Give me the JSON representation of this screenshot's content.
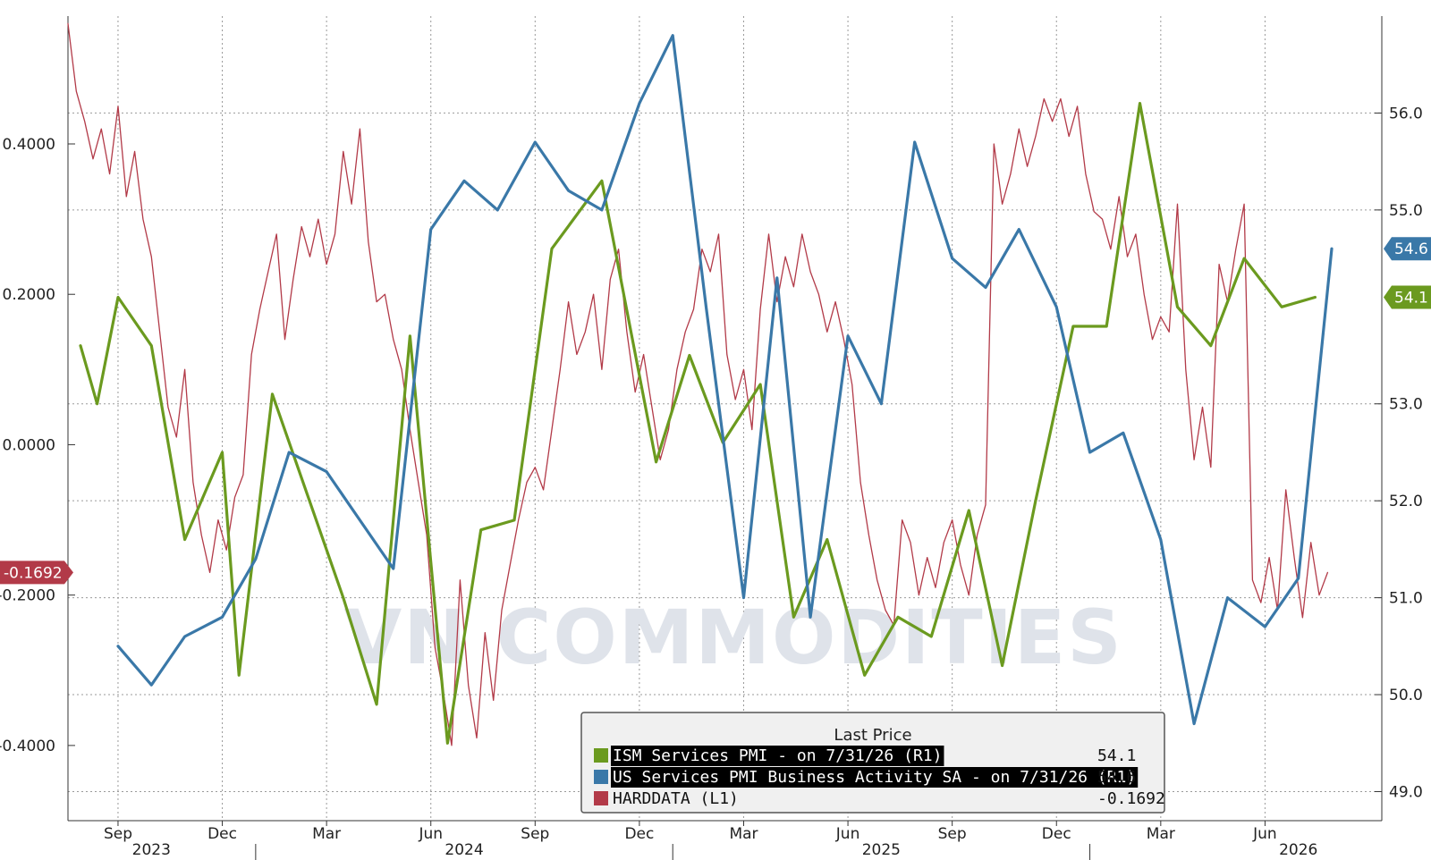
{
  "colors": {
    "ism": "#6b9a1f",
    "us": "#3a78a8",
    "hard": "#b23a48",
    "grid": "#9a9a9a",
    "legend_bg": "#f0f0f0"
  },
  "chart_data": {
    "type": "line",
    "title": "",
    "watermark": "VN COMMODITIES",
    "grid": true,
    "legend_position": "bottom-center",
    "x_axis": {
      "range": [
        2023.55,
        2026.7
      ],
      "months": [
        {
          "label": "Sep",
          "x": 2023.67
        },
        {
          "label": "Dec",
          "x": 2023.92
        },
        {
          "label": "Mar",
          "x": 2024.17
        },
        {
          "label": "Jun",
          "x": 2024.42
        },
        {
          "label": "Sep",
          "x": 2024.67
        },
        {
          "label": "Dec",
          "x": 2024.92
        },
        {
          "label": "Mar",
          "x": 2025.17
        },
        {
          "label": "Jun",
          "x": 2025.42
        },
        {
          "label": "Sep",
          "x": 2025.67
        },
        {
          "label": "Dec",
          "x": 2025.92
        },
        {
          "label": "Mar",
          "x": 2026.17
        },
        {
          "label": "Jun",
          "x": 2026.42
        }
      ],
      "years": [
        {
          "label": "2023",
          "x": 2023.75
        },
        {
          "label": "2024",
          "x": 2024.5
        },
        {
          "label": "2025",
          "x": 2025.5
        },
        {
          "label": "2026",
          "x": 2026.5
        }
      ],
      "year_boundaries": [
        2024.0,
        2025.0,
        2026.0
      ]
    },
    "left_axis": {
      "range": [
        -0.5,
        0.57
      ],
      "ticks": [
        {
          "v": 0.4,
          "label": "0.4000"
        },
        {
          "v": 0.2,
          "label": "0.2000"
        },
        {
          "v": 0.0,
          "label": "0.0000"
        },
        {
          "v": -0.2,
          "label": "-0.2000"
        },
        {
          "v": -0.4,
          "label": "-0.4000"
        }
      ]
    },
    "right_axis": {
      "range": [
        48.7,
        57.0
      ],
      "ticks": [
        {
          "v": 56.0,
          "label": "56.0"
        },
        {
          "v": 55.0,
          "label": "55.0"
        },
        {
          "v": 53.0,
          "label": "53.0"
        },
        {
          "v": 52.0,
          "label": "52.0"
        },
        {
          "v": 51.0,
          "label": "51.0"
        },
        {
          "v": 50.0,
          "label": "50.0"
        },
        {
          "v": 49.0,
          "label": "49.0"
        }
      ]
    },
    "series": [
      {
        "name": "ISM Services PMI -  on 7/31/26  (R1)",
        "axis": "right",
        "color_key": "ism",
        "last_value": "54.1",
        "badge": "54.1",
        "points": [
          [
            2023.58,
            53.6
          ],
          [
            2023.62,
            53.0
          ],
          [
            2023.67,
            54.1
          ],
          [
            2023.75,
            53.6
          ],
          [
            2023.83,
            51.6
          ],
          [
            2023.92,
            52.5
          ],
          [
            2023.96,
            50.2
          ],
          [
            2024.04,
            53.1
          ],
          [
            2024.21,
            51.0
          ],
          [
            2024.29,
            49.9
          ],
          [
            2024.37,
            53.7
          ],
          [
            2024.46,
            49.5
          ],
          [
            2024.54,
            51.7
          ],
          [
            2024.62,
            51.8
          ],
          [
            2024.71,
            54.6
          ],
          [
            2024.83,
            55.3
          ],
          [
            2024.96,
            52.4
          ],
          [
            2025.04,
            53.5
          ],
          [
            2025.12,
            52.6
          ],
          [
            2025.21,
            53.2
          ],
          [
            2025.29,
            50.8
          ],
          [
            2025.37,
            51.6
          ],
          [
            2025.46,
            50.2
          ],
          [
            2025.54,
            50.8
          ],
          [
            2025.62,
            50.6
          ],
          [
            2025.71,
            51.9
          ],
          [
            2025.79,
            50.3
          ],
          [
            2025.87,
            52.0
          ],
          [
            2025.96,
            53.8
          ],
          [
            2026.04,
            53.8
          ],
          [
            2026.12,
            56.1
          ],
          [
            2026.21,
            54.0
          ],
          [
            2026.29,
            53.6
          ],
          [
            2026.37,
            54.5
          ],
          [
            2026.46,
            54.0
          ],
          [
            2026.54,
            54.1
          ]
        ]
      },
      {
        "name": "US Services PMI Business Activity SA -  on 7/31/26  (R1)",
        "axis": "right",
        "color_key": "us",
        "last_value": "54.6",
        "badge": "54.6",
        "points": [
          [
            2023.67,
            50.5
          ],
          [
            2023.75,
            50.1
          ],
          [
            2023.83,
            50.6
          ],
          [
            2023.92,
            50.8
          ],
          [
            2024.0,
            51.4
          ],
          [
            2024.08,
            52.5
          ],
          [
            2024.17,
            52.3
          ],
          [
            2024.25,
            51.8
          ],
          [
            2024.33,
            51.3
          ],
          [
            2024.42,
            54.8
          ],
          [
            2024.5,
            55.3
          ],
          [
            2024.58,
            55.0
          ],
          [
            2024.67,
            55.7
          ],
          [
            2024.75,
            55.2
          ],
          [
            2024.83,
            55.0
          ],
          [
            2024.92,
            56.1
          ],
          [
            2025.0,
            56.8
          ],
          [
            2025.08,
            54.0
          ],
          [
            2025.17,
            51.0
          ],
          [
            2025.25,
            54.3
          ],
          [
            2025.33,
            50.8
          ],
          [
            2025.42,
            53.7
          ],
          [
            2025.5,
            53.0
          ],
          [
            2025.58,
            55.7
          ],
          [
            2025.67,
            54.5
          ],
          [
            2025.75,
            54.2
          ],
          [
            2025.83,
            54.8
          ],
          [
            2025.92,
            54.0
          ],
          [
            2026.0,
            52.5
          ],
          [
            2026.08,
            52.7
          ],
          [
            2026.17,
            51.6
          ],
          [
            2026.25,
            49.7
          ],
          [
            2026.33,
            51.0
          ],
          [
            2026.42,
            50.7
          ],
          [
            2026.5,
            51.2
          ],
          [
            2026.58,
            54.6
          ]
        ]
      },
      {
        "name": "HARDDATA  (L1)",
        "axis": "left",
        "color_key": "hard",
        "last_value": "-0.1692",
        "badge": "-0.1692",
        "points": [
          [
            2023.55,
            0.56
          ],
          [
            2023.57,
            0.47
          ],
          [
            2023.59,
            0.43
          ],
          [
            2023.61,
            0.38
          ],
          [
            2023.63,
            0.42
          ],
          [
            2023.65,
            0.36
          ],
          [
            2023.67,
            0.45
          ],
          [
            2023.69,
            0.33
          ],
          [
            2023.71,
            0.39
          ],
          [
            2023.73,
            0.3
          ],
          [
            2023.75,
            0.25
          ],
          [
            2023.77,
            0.15
          ],
          [
            2023.79,
            0.05
          ],
          [
            2023.81,
            0.01
          ],
          [
            2023.83,
            0.1
          ],
          [
            2023.85,
            -0.05
          ],
          [
            2023.87,
            -0.12
          ],
          [
            2023.89,
            -0.17
          ],
          [
            2023.91,
            -0.1
          ],
          [
            2023.93,
            -0.14
          ],
          [
            2023.95,
            -0.07
          ],
          [
            2023.97,
            -0.04
          ],
          [
            2023.99,
            0.12
          ],
          [
            2024.01,
            0.18
          ],
          [
            2024.03,
            0.23
          ],
          [
            2024.05,
            0.28
          ],
          [
            2024.07,
            0.14
          ],
          [
            2024.09,
            0.22
          ],
          [
            2024.11,
            0.29
          ],
          [
            2024.13,
            0.25
          ],
          [
            2024.15,
            0.3
          ],
          [
            2024.17,
            0.24
          ],
          [
            2024.19,
            0.28
          ],
          [
            2024.21,
            0.39
          ],
          [
            2024.23,
            0.32
          ],
          [
            2024.25,
            0.42
          ],
          [
            2024.27,
            0.27
          ],
          [
            2024.29,
            0.19
          ],
          [
            2024.31,
            0.2
          ],
          [
            2024.33,
            0.14
          ],
          [
            2024.35,
            0.1
          ],
          [
            2024.37,
            0.02
          ],
          [
            2024.39,
            -0.05
          ],
          [
            2024.41,
            -0.12
          ],
          [
            2024.43,
            -0.27
          ],
          [
            2024.45,
            -0.33
          ],
          [
            2024.47,
            -0.4
          ],
          [
            2024.49,
            -0.18
          ],
          [
            2024.51,
            -0.32
          ],
          [
            2024.53,
            -0.39
          ],
          [
            2024.55,
            -0.25
          ],
          [
            2024.57,
            -0.34
          ],
          [
            2024.59,
            -0.22
          ],
          [
            2024.61,
            -0.16
          ],
          [
            2024.63,
            -0.1
          ],
          [
            2024.65,
            -0.05
          ],
          [
            2024.67,
            -0.03
          ],
          [
            2024.69,
            -0.06
          ],
          [
            2024.71,
            0.02
          ],
          [
            2024.73,
            0.1
          ],
          [
            2024.75,
            0.19
          ],
          [
            2024.77,
            0.12
          ],
          [
            2024.79,
            0.15
          ],
          [
            2024.81,
            0.2
          ],
          [
            2024.83,
            0.1
          ],
          [
            2024.85,
            0.22
          ],
          [
            2024.87,
            0.26
          ],
          [
            2024.89,
            0.15
          ],
          [
            2024.91,
            0.07
          ],
          [
            2024.93,
            0.12
          ],
          [
            2024.95,
            0.05
          ],
          [
            2024.97,
            -0.02
          ],
          [
            2024.99,
            0.02
          ],
          [
            2025.01,
            0.1
          ],
          [
            2025.03,
            0.15
          ],
          [
            2025.05,
            0.18
          ],
          [
            2025.07,
            0.26
          ],
          [
            2025.09,
            0.23
          ],
          [
            2025.11,
            0.28
          ],
          [
            2025.13,
            0.12
          ],
          [
            2025.15,
            0.06
          ],
          [
            2025.17,
            0.1
          ],
          [
            2025.19,
            0.02
          ],
          [
            2025.21,
            0.18
          ],
          [
            2025.23,
            0.28
          ],
          [
            2025.25,
            0.19
          ],
          [
            2025.27,
            0.25
          ],
          [
            2025.29,
            0.21
          ],
          [
            2025.31,
            0.28
          ],
          [
            2025.33,
            0.23
          ],
          [
            2025.35,
            0.2
          ],
          [
            2025.37,
            0.15
          ],
          [
            2025.39,
            0.19
          ],
          [
            2025.41,
            0.14
          ],
          [
            2025.43,
            0.08
          ],
          [
            2025.45,
            -0.05
          ],
          [
            2025.47,
            -0.12
          ],
          [
            2025.49,
            -0.18
          ],
          [
            2025.51,
            -0.22
          ],
          [
            2025.53,
            -0.24
          ],
          [
            2025.55,
            -0.1
          ],
          [
            2025.57,
            -0.13
          ],
          [
            2025.59,
            -0.2
          ],
          [
            2025.61,
            -0.15
          ],
          [
            2025.63,
            -0.19
          ],
          [
            2025.65,
            -0.13
          ],
          [
            2025.67,
            -0.1
          ],
          [
            2025.69,
            -0.16
          ],
          [
            2025.71,
            -0.2
          ],
          [
            2025.73,
            -0.12
          ],
          [
            2025.75,
            -0.08
          ],
          [
            2025.77,
            0.4
          ],
          [
            2025.79,
            0.32
          ],
          [
            2025.81,
            0.36
          ],
          [
            2025.83,
            0.42
          ],
          [
            2025.85,
            0.37
          ],
          [
            2025.87,
            0.41
          ],
          [
            2025.89,
            0.46
          ],
          [
            2025.91,
            0.43
          ],
          [
            2025.93,
            0.46
          ],
          [
            2025.95,
            0.41
          ],
          [
            2025.97,
            0.45
          ],
          [
            2025.99,
            0.36
          ],
          [
            2026.01,
            0.31
          ],
          [
            2026.03,
            0.3
          ],
          [
            2026.05,
            0.26
          ],
          [
            2026.07,
            0.33
          ],
          [
            2026.09,
            0.25
          ],
          [
            2026.11,
            0.28
          ],
          [
            2026.13,
            0.2
          ],
          [
            2026.15,
            0.14
          ],
          [
            2026.17,
            0.17
          ],
          [
            2026.19,
            0.15
          ],
          [
            2026.21,
            0.32
          ],
          [
            2026.23,
            0.1
          ],
          [
            2026.25,
            -0.02
          ],
          [
            2026.27,
            0.05
          ],
          [
            2026.29,
            -0.03
          ],
          [
            2026.31,
            0.24
          ],
          [
            2026.33,
            0.19
          ],
          [
            2026.35,
            0.26
          ],
          [
            2026.37,
            0.32
          ],
          [
            2026.39,
            -0.18
          ],
          [
            2026.41,
            -0.21
          ],
          [
            2026.43,
            -0.15
          ],
          [
            2026.45,
            -0.22
          ],
          [
            2026.47,
            -0.06
          ],
          [
            2026.49,
            -0.15
          ],
          [
            2026.51,
            -0.23
          ],
          [
            2026.53,
            -0.13
          ],
          [
            2026.55,
            -0.2
          ],
          [
            2026.57,
            -0.17
          ]
        ]
      }
    ]
  },
  "legend": {
    "title": "Last Price",
    "items": [
      {
        "label": "ISM Services PMI -  on 7/31/26  (R1)",
        "value": "54.1",
        "color_key": "ism",
        "highlight": true
      },
      {
        "label": "US Services PMI Business Activity SA -  on 7/31/26  (R1)",
        "value": "54.6",
        "color_key": "us",
        "highlight": true
      },
      {
        "label": "HARDDATA  (L1)",
        "value": "-0.1692",
        "color_key": "hard",
        "highlight": false
      }
    ]
  }
}
